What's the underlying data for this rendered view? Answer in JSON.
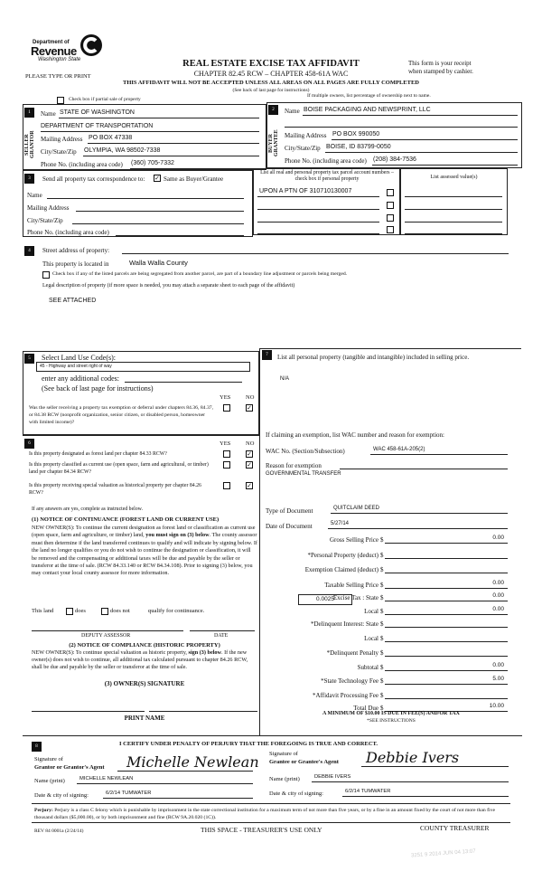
{
  "header": {
    "logo": {
      "line1": "Department of",
      "line2": "Revenue",
      "line3": "Washington State"
    },
    "title": "REAL ESTATE EXCISE TAX AFFIDAVIT",
    "subtitle": "CHAPTER 82.45 RCW – CHAPTER 458-61A WAC",
    "receipt1": "This form is your receipt",
    "receipt2": "when stamped by cashier.",
    "please": "PLEASE TYPE OR PRINT",
    "warning": "THIS AFFIDAVIT WILL NOT BE ACCEPTED UNLESS ALL AREAS ON ALL PAGES ARE FULLY COMPLETED",
    "see_back": "(See back of last page for instructions)",
    "partial_sale": "Check box if partial sale of property",
    "multiple_owners": "If multiple owners, list percentage of ownership next to name."
  },
  "seller": {
    "num": "1",
    "side": "SELLER GRANTOR",
    "name_label": "Name",
    "name": "STATE OF WASHINGTON",
    "name2": "DEPARTMENT OF TRANSPORTATION",
    "mail_label": "Mailing Address",
    "mail": "PO BOX 47338",
    "city_label": "City/State/Zip",
    "city": "OLYMPIA, WA  98502-7338",
    "phone_label": "Phone No. (including area code)",
    "phone": "(360) 705-7332"
  },
  "buyer": {
    "num": "2",
    "side": "BUYER GRANTEE",
    "name_label": "Name",
    "name": "BOISE PACKAGING AND NEWSPRINT, LLC",
    "mail_label": "Mailing Address",
    "mail": "PO BOX 990050",
    "city_label": "City/State/Zip",
    "city": "BOISE, ID  83799-0050",
    "phone_label": "Phone No. (including area code)",
    "phone": "(208) 384-7536"
  },
  "section3": {
    "num": "3",
    "label": "Send all property tax correspondence to:",
    "same": "Same as Buyer/Grantee",
    "same_checked": true,
    "name": "Name",
    "mail": "Mailing Address",
    "city": "City/State/Zip",
    "phone": "Phone No. (including area code)",
    "parcel_header": "List all real and personal property tax parcel account numbers – check box if personal property",
    "assessed_header": "List assessed value(s)",
    "parcels": [
      "UPON A PTN OF 310710130007",
      "",
      "",
      ""
    ]
  },
  "section4": {
    "num": "4",
    "street_label": "Street address of property:",
    "located_label": "This property is located in",
    "county": "Walla Walla County",
    "segregated": "Check box if any of the listed parcels are being segregated from another parcel, are part of a boundary line adjustment or parcels being merged.",
    "legal_label": "Legal description of property (if more space is needed, you may attach a separate sheet to each page of the affidavit)",
    "legal": "SEE ATTACHED"
  },
  "section5": {
    "num": "5",
    "label": "Select Land Use Code(s):",
    "code": "45 - Highway and street right of way",
    "additional": "enter any additional codes:",
    "see_back": "(See back of last page for instructions)",
    "yes": "YES",
    "no": "NO",
    "question": "Was the seller receiving a property tax exemption or deferral under chapters 84.36, 84.37, or 84.38 RCW (nonprofit organization, senior citizen, or disabled person, homeowner with limited income)?",
    "answer": "NO"
  },
  "section6": {
    "num": "6",
    "yes": "YES",
    "no": "NO",
    "questions": [
      {
        "text": "Is this property designated as forest land per chapter 84.33 RCW?",
        "answer": "NO"
      },
      {
        "text": "Is this property classified as current use (open space, farm and agricultural, or timber) land per chapter 84.34 RCW?",
        "answer": "NO"
      },
      {
        "text": "Is this property receiving special valuation as historical property per chapter 84.26 RCW?",
        "answer": "NO"
      }
    ],
    "if_yes": "If any answers are yes, complete as instructed below.",
    "notice1_title": "(1) NOTICE OF CONTINUANCE (FOREST LAND OR CURRENT USE)",
    "notice1_a": "NEW OWNER(S): To continue the current designation as forest land or classification as current use (open space, farm and agriculture, or timber) land,",
    "notice1_bold": "you must sign on (3) below",
    "notice1_b": ". The county assessor must then determine if the land transferred continues to qualify and will indicate by signing below. If the land no longer qualifies or you do not wish to continue the designation or classification, it will be removed and the compensating or additional taxes will be due and payable by the seller or transferor at the time of sale. (RCW 84.33.140 or RCW 84.34.108). Prior to signing (3) below, you may contact your local county assessor for more information.",
    "this_land": "This land",
    "does": "does",
    "does_not": "does not",
    "qualify": "qualify for continuance.",
    "deputy": "DEPUTY ASSESSOR",
    "date": "DATE",
    "notice2_title": "(2) NOTICE OF COMPLIANCE (HISTORIC PROPERTY)",
    "notice2_a": "NEW OWNER(S): To continue special valuation as historic property,",
    "notice2_bold": "sign (3) below",
    "notice2_b": ". If the new owner(s) does not wish to continue, all additional tax calculated pursuant to chapter 84.26 RCW, shall be due and payable by the seller or transferor at the time of sale.",
    "owner_sig": "(3)  OWNER(S) SIGNATURE",
    "print_name": "PRINT NAME"
  },
  "section7": {
    "num": "7",
    "label": "List all  personal property (tangible and intangible) included in selling price.",
    "value": "N/A",
    "exemption_label": "If claiming an exemption, list WAC number and reason for exemption:",
    "wac_label": "WAC No. (Section/Subsection)",
    "wac": "WAC 458-61A-205(2)",
    "reason_label": "Reason for exemption",
    "reason": "GOVERNMENTAL TRANSFER",
    "doc_type_label": "Type of Document",
    "doc_type": "QUITCLAIM DEED",
    "doc_date_label": "Date of Document",
    "doc_date": "5/27/14",
    "local_rate": "0.0025",
    "amounts": [
      {
        "label": "Gross Selling Price",
        "value": "0.00"
      },
      {
        "label": "*Personal Property (deduct)",
        "value": ""
      },
      {
        "label": "Exemption Claimed (deduct)",
        "value": ""
      },
      {
        "label": "Taxable Selling Price",
        "value": "0.00"
      },
      {
        "label": "Excise Tax : State",
        "value": "0.00"
      },
      {
        "label": "Local",
        "value": "0.00"
      },
      {
        "label": "*Delinquent Interest: State",
        "value": ""
      },
      {
        "label": "Local",
        "value": ""
      },
      {
        "label": "*Delinquent Penalty",
        "value": ""
      },
      {
        "label": "Subtotal",
        "value": "0.00"
      },
      {
        "label": "*State Technology Fee",
        "value": "5.00"
      },
      {
        "label": "*Affidavit Processing Fee",
        "value": ""
      },
      {
        "label": "Total Due",
        "value": "10.00"
      }
    ],
    "currency": "$",
    "minimum": "A MINIMUM OF $10.00 IS DUE IN FEE(S) AND/OR TAX",
    "see_instr": "*SEE INSTRUCTIONS"
  },
  "section8": {
    "num": "8",
    "certify": "I CERTIFY UNDER PENALTY OF PERJURY THAT THE FOREGOING IS TRUE AND CORRECT.",
    "sig_of": "Signature of",
    "grantor_agent": "Grantor or Grantor's Agent",
    "grantee_agent": "Grantee or Grantee's Agent",
    "grantor_sig": "Michelle Newlean",
    "grantee_sig": "Debbie Ivers",
    "name_label": "Name (print)",
    "grantor_name": "MICHELLE NEWLEAN",
    "grantee_name": "DEBBIE IVERS",
    "date_label": "Date & city of signing:",
    "grantor_date": "6/2/14  TUMWATER",
    "grantee_date": "6/2/14  TUMWATER"
  },
  "footer": {
    "perjury_bold": "Perjury:",
    "perjury": " Perjury is a class C felony which is punishable by imprisonment in the state correctional institution for a maximum term of not more than five years, or by a fine in an amount fixed by the court of not more than five thousand dollars ($5,000.00), or by both imprisonment and fine (RCW 9A.20.020 (1C)).",
    "form_no": "REV 84 0001a (2/24/14)",
    "treasurer_space": "THIS SPACE - TREASURER'S USE ONLY",
    "county_treasurer": "COUNTY TREASURER",
    "stamp": "3251 9 2014 JUN 04 13:07"
  }
}
